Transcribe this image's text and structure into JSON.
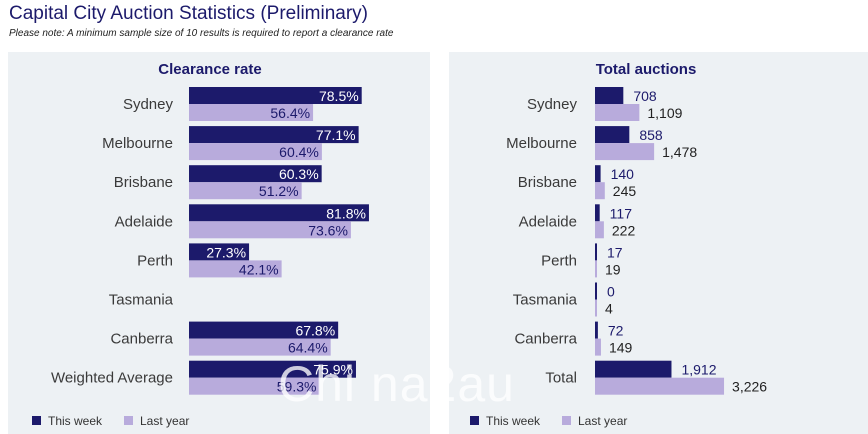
{
  "header": {
    "title": "Capital City Auction Statistics (Preliminary)",
    "note": "Please note: A minimum sample size of 10 results is required to report a clearance rate"
  },
  "colors": {
    "this_week": "#1c1a6b",
    "last_year": "#b8abdc",
    "panel_bg": "#edf1f4",
    "label_text": "#3a3a3a"
  },
  "watermark": "Chi na2au",
  "chart_data": [
    {
      "type": "bar",
      "orientation": "horizontal",
      "title": "Clearance rate",
      "categories": [
        "Sydney",
        "Melbourne",
        "Brisbane",
        "Adelaide",
        "Perth",
        "Tasmania",
        "Canberra",
        "Weighted Average"
      ],
      "series": [
        {
          "name": "This week",
          "values": [
            78.5,
            77.1,
            60.3,
            81.8,
            27.3,
            null,
            67.8,
            75.9
          ],
          "labels": [
            "78.5%",
            "77.1%",
            "60.3%",
            "81.8%",
            "27.3%",
            "",
            "67.8%",
            "75.9%"
          ]
        },
        {
          "name": "Last year",
          "values": [
            56.4,
            60.4,
            51.2,
            73.6,
            42.1,
            null,
            64.4,
            59.3
          ],
          "labels": [
            "56.4%",
            "60.4%",
            "51.2%",
            "73.6%",
            "42.1%",
            "",
            "64.4%",
            "59.3%"
          ]
        }
      ],
      "xlim": [
        0,
        100
      ],
      "legend": "bottom-left"
    },
    {
      "type": "bar",
      "orientation": "horizontal",
      "title": "Total auctions",
      "categories": [
        "Sydney",
        "Melbourne",
        "Brisbane",
        "Adelaide",
        "Perth",
        "Tasmania",
        "Canberra",
        "Total"
      ],
      "series": [
        {
          "name": "This week",
          "values": [
            708,
            858,
            140,
            117,
            17,
            0,
            72,
            1912
          ],
          "labels": [
            "708",
            "858",
            "140",
            "117",
            "17",
            "0",
            "72",
            "1,912"
          ]
        },
        {
          "name": "Last year",
          "values": [
            1109,
            1478,
            245,
            222,
            19,
            4,
            149,
            3226
          ],
          "labels": [
            "1,109",
            "1,478",
            "245",
            "222",
            "19",
            "4",
            "149",
            "3,226"
          ]
        }
      ],
      "xlim": [
        0,
        5500
      ],
      "legend": "bottom-left"
    }
  ]
}
